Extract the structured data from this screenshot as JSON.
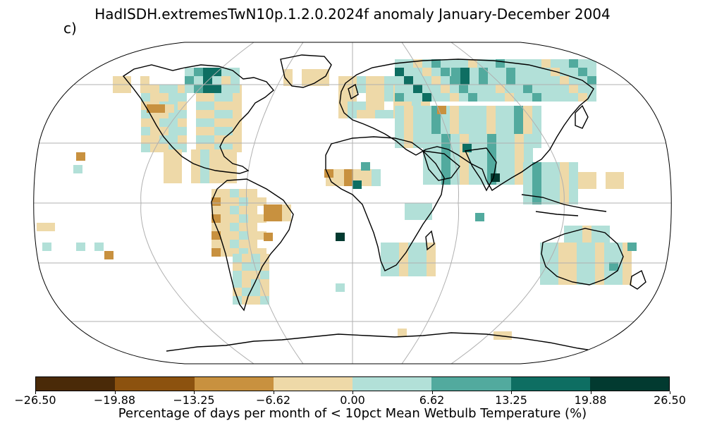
{
  "title": "HadISDH.extremesTwN10p.1.2.0.2024f anomaly January-December 2004",
  "panel_label": "c)",
  "colorbar": {
    "label": "Percentage of days per month of < 10pct Mean Wetbulb Temperature (%)",
    "ticks": [
      "−26.50",
      "−19.88",
      "−13.25",
      "−6.62",
      "0.00",
      "6.62",
      "13.25",
      "19.88",
      "26.50"
    ],
    "colors": [
      "#4a2a08",
      "#8c520f",
      "#c8913f",
      "#eed9a8",
      "#b2e0d8",
      "#52aa9e",
      "#0e6e62",
      "#023a30"
    ]
  },
  "map": {
    "projection": "Robinson",
    "gridlines": true,
    "grid_color": "#b0b0b0",
    "coastline_color": "#000000"
  }
}
